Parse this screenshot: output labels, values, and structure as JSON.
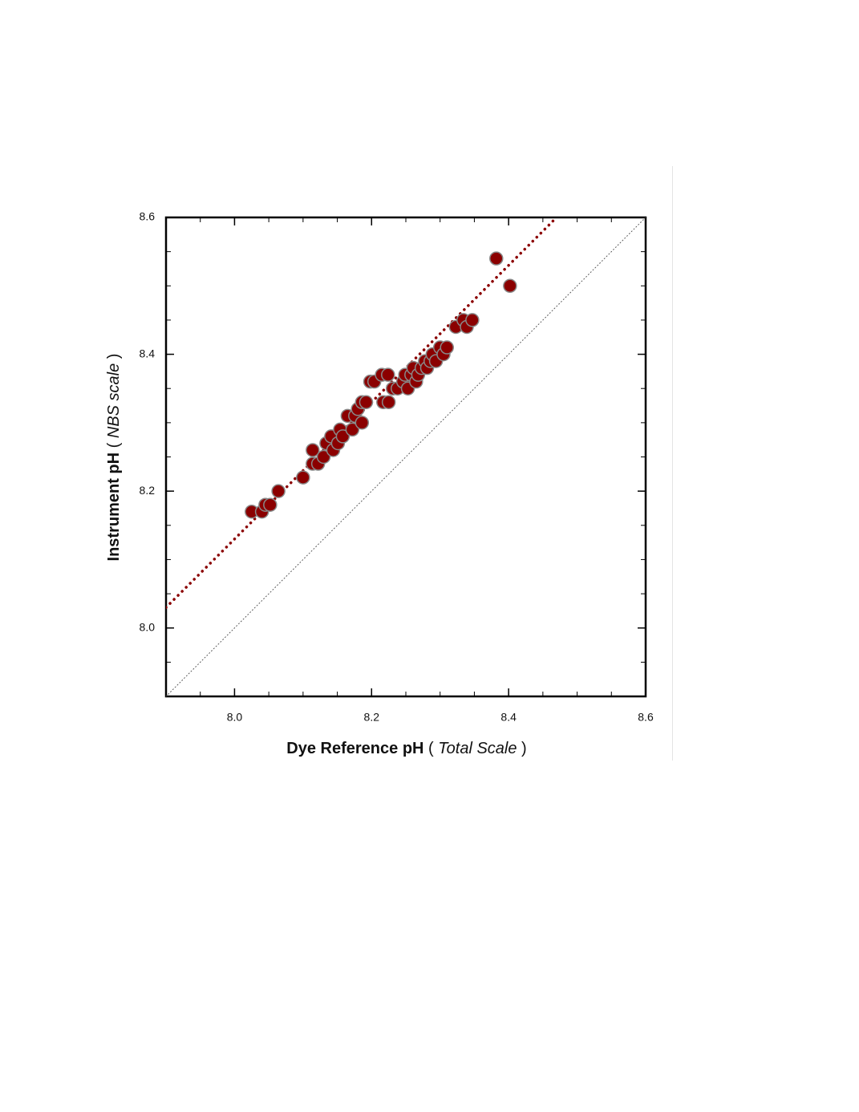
{
  "chart_data": {
    "type": "scatter",
    "xlabel": [
      "Dye Reference pH",
      "( ",
      "Total Scale",
      " )"
    ],
    "ylabel": [
      "Instrument pH",
      "( ",
      "NBS scale",
      " )"
    ],
    "xlim": [
      7.9,
      8.6
    ],
    "ylim": [
      7.9,
      8.6
    ],
    "xticks": [
      {
        "value": 8,
        "label": "8.0"
      },
      8.2,
      8.4,
      8.6
    ],
    "yticks": [
      {
        "value": 8,
        "label": "8.0"
      },
      8.2,
      8.4,
      8.6
    ],
    "xminorticks": [
      7.95,
      8.0,
      8.05,
      8.1,
      8.15,
      8.2,
      8.25,
      8.3,
      8.35,
      8.4,
      8.45,
      8.5,
      8.55
    ],
    "yminorticks": [
      7.95,
      8.0,
      8.05,
      8.1,
      8.15,
      8.2,
      8.25,
      8.3,
      8.35,
      8.4,
      8.45,
      8.5,
      8.55
    ],
    "series": [
      {
        "color": "#8b0000",
        "x": [
          8.025,
          8.04,
          8.045,
          8.052,
          8.064,
          8.1,
          8.114,
          8.114,
          8.122,
          8.13,
          8.134,
          8.141,
          8.144,
          8.151,
          8.154,
          8.158,
          8.165,
          8.172,
          8.176,
          8.18,
          8.186,
          8.186,
          8.192,
          8.198,
          8.204,
          8.215,
          8.217,
          8.224,
          8.225,
          8.231,
          8.238,
          8.246,
          8.249,
          8.253,
          8.258,
          8.261,
          8.265,
          8.268,
          8.273,
          8.278,
          8.281,
          8.286,
          8.289,
          8.294,
          8.3,
          8.305,
          8.31,
          8.323,
          8.334,
          8.339,
          8.347,
          8.382,
          8.402
        ],
        "values": [
          8.17,
          8.17,
          8.18,
          8.18,
          8.2,
          8.22,
          8.26,
          8.24,
          8.24,
          8.25,
          8.27,
          8.28,
          8.26,
          8.27,
          8.29,
          8.28,
          8.31,
          8.29,
          8.31,
          8.32,
          8.33,
          8.3,
          8.33,
          8.36,
          8.36,
          8.37,
          8.33,
          8.37,
          8.33,
          8.35,
          8.35,
          8.36,
          8.37,
          8.35,
          8.37,
          8.38,
          8.36,
          8.37,
          8.38,
          8.39,
          8.38,
          8.39,
          8.4,
          8.39,
          8.41,
          8.4,
          8.41,
          8.44,
          8.45,
          8.44,
          8.45,
          8.54,
          8.5
        ]
      }
    ],
    "fit_line": {
      "color": "#8b0000",
      "x": [
        7.9,
        8.47
      ],
      "values": [
        8.03,
        8.6
      ]
    },
    "identity_line": {
      "color": "#555555",
      "x": [
        7.9,
        8.6
      ],
      "values": [
        7.9,
        8.6
      ]
    }
  }
}
